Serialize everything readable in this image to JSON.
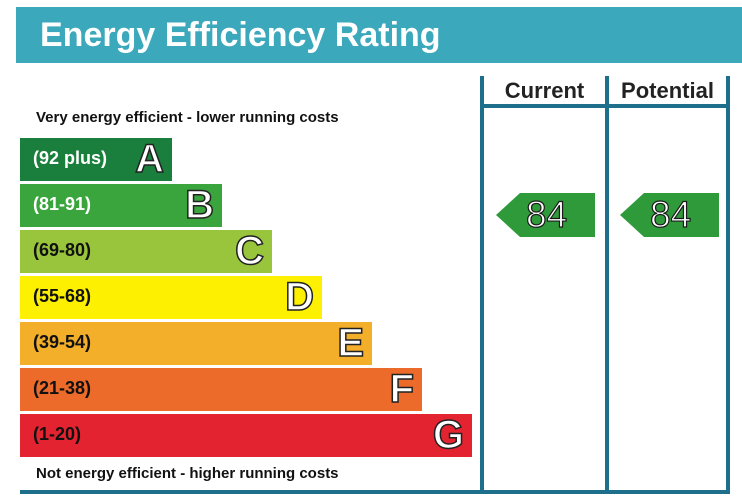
{
  "title": "Energy Efficiency Rating",
  "columns": {
    "current": "Current",
    "potential": "Potential"
  },
  "captions": {
    "top": "Very energy efficient - lower running costs",
    "bottom": "Not energy efficient - higher running costs"
  },
  "chart_data": {
    "type": "bar",
    "title": "Energy Efficiency Rating",
    "bands": [
      {
        "letter": "A",
        "range": "(92 plus)",
        "color": "#1a7f3c",
        "text_color": "#ffffff"
      },
      {
        "letter": "B",
        "range": "(81-91)",
        "color": "#3aa53d",
        "text_color": "#ffffff"
      },
      {
        "letter": "C",
        "range": "(69-80)",
        "color": "#98c53c",
        "text_color": "#111111"
      },
      {
        "letter": "D",
        "range": "(55-68)",
        "color": "#fdf000",
        "text_color": "#111111"
      },
      {
        "letter": "E",
        "range": "(39-54)",
        "color": "#f3ae2a",
        "text_color": "#111111"
      },
      {
        "letter": "F",
        "range": "(21-38)",
        "color": "#ec6a2a",
        "text_color": "#111111"
      },
      {
        "letter": "G",
        "range": "(1-20)",
        "color": "#e3232f",
        "text_color": "#111111"
      }
    ],
    "current": {
      "value": 84,
      "band": "B",
      "color": "#2f9a3a"
    },
    "potential": {
      "value": 84,
      "band": "B",
      "color": "#2f9a3a"
    }
  }
}
